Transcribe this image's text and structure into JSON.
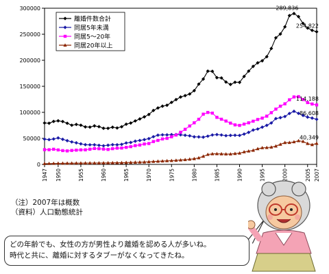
{
  "chart_data": {
    "type": "line",
    "title": "",
    "xlabel": "",
    "ylabel": "",
    "ylim": [
      0,
      300000
    ],
    "yticks": [
      0,
      50000,
      100000,
      150000,
      200000,
      250000,
      300000
    ],
    "xlim": [
      1947,
      2007
    ],
    "xticks": [
      1947,
      1950,
      1955,
      1960,
      1965,
      1970,
      1975,
      1980,
      1985,
      1990,
      1995,
      2000,
      2005,
      2007
    ],
    "grid": false,
    "legend_position": "top-left",
    "x": [
      1947,
      1948,
      1949,
      1950,
      1951,
      1952,
      1953,
      1954,
      1955,
      1956,
      1957,
      1958,
      1959,
      1960,
      1961,
      1962,
      1963,
      1964,
      1965,
      1966,
      1967,
      1968,
      1969,
      1970,
      1971,
      1972,
      1973,
      1974,
      1975,
      1976,
      1977,
      1978,
      1979,
      1980,
      1981,
      1982,
      1983,
      1984,
      1985,
      1986,
      1987,
      1988,
      1989,
      1990,
      1991,
      1992,
      1993,
      1994,
      1995,
      1996,
      1997,
      1998,
      1999,
      2000,
      2001,
      2002,
      2003,
      2004,
      2005,
      2006,
      2007
    ],
    "series": [
      {
        "name": "離婚件数合計",
        "color": "#000000",
        "marker": "diamond",
        "values": [
          79551,
          79032,
          82575,
          83689,
          82331,
          79021,
          75255,
          76759,
          75267,
          72040,
          71651,
          74004,
          72455,
          69410,
          69323,
          71394,
          69996,
          72306,
          77195,
          79432,
          83478,
          87327,
          91280,
          95937,
          103595,
          108382,
          111877,
          113622,
          119135,
          124512,
          129485,
          132146,
          135250,
          141689,
          154221,
          163980,
          179150,
          178746,
          166640,
          166054,
          158227,
          153600,
          157811,
          157608,
          168969,
          179191,
          188297,
          195106,
          199016,
          206955,
          222635,
          243183,
          250529,
          264246,
          285911,
          289836,
          283854,
          270804,
          261917,
          257475,
          254822
        ],
        "end_label": "254,822",
        "peak_label": "289,836",
        "peak_x": 2002
      },
      {
        "name": "同居5年未満",
        "color": "#1a1aa6",
        "marker": "diamond",
        "values": [
          48500,
          47600,
          48800,
          50800,
          48200,
          45600,
          43200,
          41400,
          39500,
          37900,
          37600,
          37700,
          36600,
          35800,
          36800,
          37800,
          37700,
          38500,
          41200,
          42100,
          44600,
          46000,
          47600,
          49500,
          53200,
          56200,
          56800,
          56700,
          57200,
          57300,
          56800,
          56000,
          54900,
          53000,
          52800,
          52300,
          54200,
          56500,
          57300,
          56500,
          55200,
          55800,
          56000,
          55700,
          58200,
          61500,
          66000,
          68000,
          71500,
          75000,
          79600,
          88000,
          89800,
          92000,
          97800,
          102000,
          98000,
          94000,
          90800,
          89000,
          86608
        ],
        "end_label": "86,608"
      },
      {
        "name": "同居5～20年",
        "color": "#ff00ff",
        "marker": "square",
        "values": [
          28300,
          28200,
          29100,
          27800,
          26500,
          25900,
          26800,
          27400,
          27900,
          28000,
          29200,
          30500,
          30100,
          29400,
          28700,
          30200,
          31200,
          31400,
          32700,
          34100,
          36100,
          37200,
          39200,
          40100,
          43900,
          46100,
          48900,
          50000,
          53000,
          56400,
          61800,
          67400,
          73800,
          79900,
          86700,
          96500,
          99800,
          98500,
          90400,
          86800,
          83300,
          79300,
          75900,
          74900,
          77400,
          79900,
          83000,
          86300,
          88900,
          92700,
          99400,
          106200,
          111800,
          116400,
          124100,
          129600,
          130200,
          124600,
          118700,
          116000,
          114188
        ],
        "end_label": "114,188"
      },
      {
        "name": "同居20年以上",
        "color": "#8b2500",
        "marker": "triangle",
        "values": [
          1500,
          1600,
          1800,
          2000,
          2100,
          2200,
          2300,
          2400,
          2400,
          2500,
          2600,
          2600,
          2700,
          2800,
          2900,
          3000,
          3100,
          3200,
          3500,
          3700,
          4000,
          4200,
          4500,
          5000,
          5600,
          6000,
          6400,
          6900,
          7200,
          7700,
          8400,
          9000,
          9900,
          10900,
          12500,
          15500,
          19000,
          20200,
          20400,
          20100,
          19900,
          19900,
          20800,
          21600,
          24000,
          25500,
          27000,
          30000,
          31900,
          32200,
          33000,
          35100,
          38500,
          41800,
          41900,
          43200,
          45400,
          44100,
          40000,
          37800,
          40349
        ],
        "end_label": "40,349"
      }
    ]
  },
  "notes": {
    "line1": "（注）2007年は概数",
    "line2": "（資料）人口動態統計"
  },
  "speech": {
    "line1": "どの年齢でも、女性の方が男性より離婚を認める人が多いね。",
    "line2": "時代と共に、離婚に対するタブーがなくなってきたね。"
  }
}
